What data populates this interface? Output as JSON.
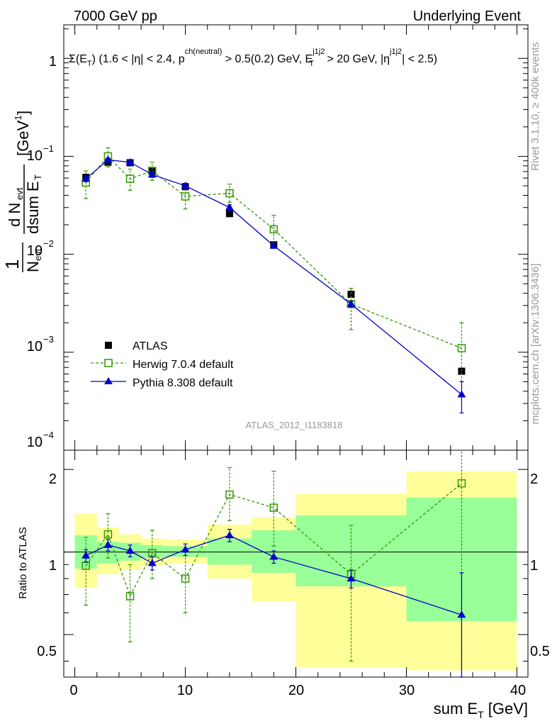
{
  "header": {
    "left": "7000 GeV pp",
    "right": "Underlying Event"
  },
  "side_text": {
    "top": "Rivet 3.1.10, ≥ 400k events",
    "bottom": "mcplots.cern.ch [arXiv:1306.3436]"
  },
  "watermark": "ATLAS_2012_I1183818",
  "chart_data": [
    {
      "type": "line",
      "yscale": "log",
      "title": "Σ(E_T) (1.6 < |η| < 2.4, p_T^ch(neutral) > 0.5(0.2) GeV, E_T^j1j2 > 20 GeV, |η^j1j2| < 2.5)",
      "title_parts": {
        "sigma": "Σ(E",
        "sub_t": "T",
        "cuts1": ") (1.6 < |η| < 2.4, p",
        "sup_ch": "ch(neutral)",
        "cuts2": " > 0.5(0.2) GeV, E",
        "sup_j": "j1j2",
        "sub_t2": "T",
        "cuts3": " > 20 GeV, |η",
        "sup_j2": "j1j2",
        "cuts4": "| < 2.5)"
      },
      "ylabel": "1/N_evt dN_evt/dsum E_T [GeV^-1]",
      "ylabel_parts": {
        "num": "1",
        "den": "N",
        "den_sub": "evt",
        "dn": "d N",
        "dn_sub": "evt",
        "dsum": "dsum E",
        "dsum_sub": "T",
        "unit": "[GeV",
        "unit_sup": "-1",
        "unit_close": "]"
      },
      "ylim": [
        0.0001,
        2.2
      ],
      "xlim": [
        -1,
        41
      ],
      "y_tick_labels": {
        "e0": "1",
        "em1_base": "10",
        "em1_exp": "−1",
        "em2_base": "10",
        "em2_exp": "−2",
        "em3_base": "10",
        "em3_exp": "−3",
        "em4_base": "10",
        "em4_exp": "−4"
      },
      "legend_position": "lower-left",
      "series": [
        {
          "name": "ATLAS",
          "color": "#000000",
          "marker": "filled-square",
          "x": [
            1,
            3,
            5,
            7,
            10,
            14,
            18,
            25,
            35
          ],
          "y": [
            0.061,
            0.087,
            0.086,
            0.071,
            0.049,
            0.026,
            0.0125,
            0.0039,
            0.00064
          ]
        },
        {
          "name": "Herwig 7.0.4 default",
          "color": "#339900",
          "marker": "open-square",
          "line": "dashed",
          "x": [
            1,
            3,
            5,
            7,
            10,
            14,
            18,
            25,
            35
          ],
          "y": [
            0.054,
            0.1,
            0.059,
            0.071,
            0.039,
            0.042,
            0.018,
            0.0031,
            0.0011
          ],
          "err_lo": [
            0.037,
            0.078,
            0.045,
            0.057,
            0.029,
            0.034,
            0.013,
            0.0017,
            0.0005
          ],
          "err_hi": [
            0.071,
            0.122,
            0.074,
            0.087,
            0.049,
            0.052,
            0.025,
            0.0045,
            0.002
          ]
        },
        {
          "name": "Pythia 8.308 default",
          "color": "#0000cc",
          "marker": "filled-triangle",
          "line": "solid",
          "x": [
            1,
            3,
            5,
            7,
            10,
            14,
            18,
            25,
            35
          ],
          "y": [
            0.059,
            0.092,
            0.087,
            0.065,
            0.05,
            0.03,
            0.0122,
            0.0031,
            0.00037
          ],
          "err_lo": [
            0.055,
            0.088,
            0.083,
            0.061,
            0.047,
            0.028,
            0.0115,
            0.0029,
            0.00024
          ],
          "err_hi": [
            0.063,
            0.096,
            0.091,
            0.069,
            0.053,
            0.032,
            0.0129,
            0.0033,
            0.0005
          ]
        }
      ]
    },
    {
      "type": "line",
      "yscale": "log",
      "ylabel": "Ratio to ATLAS",
      "xlabel": "sum E_T [GeV]",
      "xlabel_parts": {
        "main": "sum E",
        "sub": "T",
        "unit": " [GeV]"
      },
      "ylim": [
        0.35,
        2.35
      ],
      "xlim": [
        -1,
        41
      ],
      "x_ticks": [
        "0",
        "10",
        "20",
        "30",
        "40"
      ],
      "y_ticks": [
        "0.5",
        "1",
        "2"
      ],
      "bins": [
        {
          "lo": 0,
          "hi": 2,
          "yel": [
            0.74,
            1.38
          ],
          "grn": [
            0.87,
            1.15
          ]
        },
        {
          "lo": 2,
          "hi": 4,
          "yel": [
            0.83,
            1.23
          ],
          "grn": [
            0.91,
            1.09
          ]
        },
        {
          "lo": 4,
          "hi": 6,
          "yel": [
            0.86,
            1.16
          ],
          "grn": [
            0.93,
            1.08
          ]
        },
        {
          "lo": 6,
          "hi": 8,
          "yel": [
            0.89,
            1.12
          ],
          "grn": [
            0.95,
            1.06
          ]
        },
        {
          "lo": 8,
          "hi": 12,
          "yel": [
            0.91,
            1.11
          ],
          "grn": [
            0.96,
            1.05
          ]
        },
        {
          "lo": 12,
          "hi": 16,
          "yel": [
            0.8,
            1.26
          ],
          "grn": [
            0.9,
            1.12
          ]
        },
        {
          "lo": 16,
          "hi": 20,
          "yel": [
            0.66,
            1.34
          ],
          "grn": [
            0.84,
            1.2
          ]
        },
        {
          "lo": 20,
          "hi": 30,
          "yel": [
            0.38,
            1.63
          ],
          "grn": [
            0.75,
            1.36
          ]
        },
        {
          "lo": 30,
          "hi": 40,
          "yel": [
            0.37,
            1.97
          ],
          "grn": [
            0.56,
            1.58
          ]
        }
      ],
      "series": [
        {
          "name": "Herwig 7.0.4 default",
          "color": "#339900",
          "x": [
            1,
            3,
            5,
            7,
            10,
            14,
            18,
            25,
            35
          ],
          "y": [
            0.89,
            1.16,
            0.69,
            0.99,
            0.8,
            1.62,
            1.45,
            0.83,
            1.78
          ],
          "err_lo": [
            0.64,
            0.95,
            0.47,
            0.8,
            0.6,
            1.3,
            1.05,
            0.4,
            0.35
          ],
          "err_hi": [
            1.13,
            1.38,
            0.9,
            1.2,
            1.0,
            2.03,
            1.97,
            1.25,
            3.2
          ]
        },
        {
          "name": "Pythia 8.308 default",
          "color": "#0000cc",
          "x": [
            1,
            3,
            5,
            7,
            10,
            14,
            18,
            25,
            35
          ],
          "y": [
            0.97,
            1.06,
            1.01,
            0.91,
            1.02,
            1.15,
            0.96,
            0.8,
            0.59
          ],
          "err_lo": [
            0.92,
            1.01,
            0.96,
            0.86,
            0.97,
            1.09,
            0.91,
            0.74,
            0.35
          ],
          "err_hi": [
            1.02,
            1.11,
            1.06,
            0.96,
            1.07,
            1.21,
            1.01,
            0.86,
            0.84
          ]
        }
      ]
    }
  ]
}
